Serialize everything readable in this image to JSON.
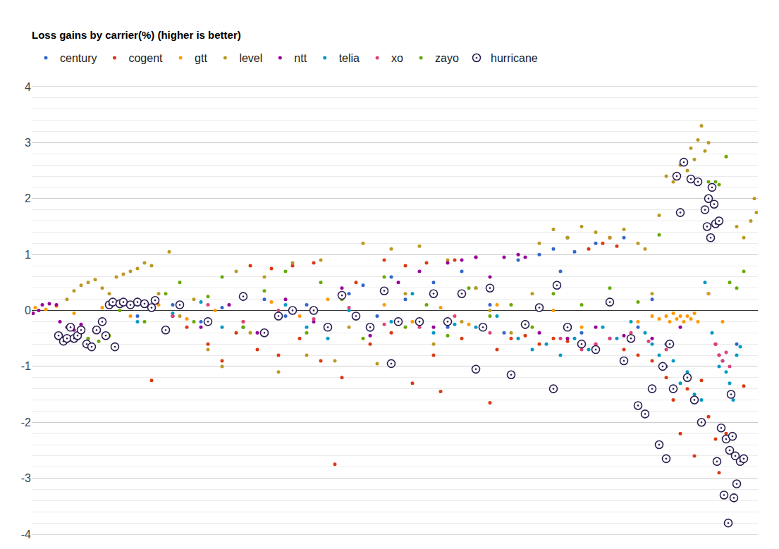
{
  "chart_data": {
    "type": "scatter",
    "title": "Loss gains by carrier(%) (higher is better)",
    "marker": "circle",
    "legend": "top",
    "grid": true,
    "tick_labels": "y",
    "xlim": [
      0,
      1030
    ],
    "ylim": [
      -4,
      4
    ],
    "yticks": [
      -4,
      -3,
      -2,
      -1,
      0,
      1,
      2,
      3,
      4
    ],
    "series": [
      {
        "name": "century",
        "color": "#3366cc",
        "x": [
          150,
          200,
          240,
          270,
          300,
          330,
          360,
          390,
          420,
          450,
          470,
          490,
          510,
          530,
          550,
          570,
          590,
          610,
          630,
          650,
          670,
          690,
          700,
          720,
          740,
          750,
          760,
          770,
          780,
          800,
          820,
          840,
          860,
          880,
          900,
          930,
          960,
          980,
          1000
        ],
        "values": [
          -0.1,
          0.1,
          -0.2,
          0.05,
          -0.3,
          0.2,
          -0.1,
          0.1,
          -0.3,
          0.3,
          0.45,
          -0.1,
          0.6,
          0.2,
          -0.2,
          0.5,
          -0.3,
          0.7,
          0.4,
          0.1,
          -0.4,
          0.9,
          -0.2,
          1.0,
          1.1,
          0.7,
          1.3,
          1.05,
          -0.4,
          1.2,
          -0.5,
          1.3,
          -0.3,
          0.2,
          -0.6,
          -1.2,
          0.3,
          -0.9,
          -0.6
        ]
      },
      {
        "name": "cogent",
        "color": "#dc3912",
        "x": [
          170,
          220,
          250,
          270,
          290,
          310,
          320,
          340,
          350,
          370,
          380,
          400,
          410,
          430,
          440,
          460,
          480,
          500,
          510,
          530,
          540,
          560,
          570,
          580,
          600,
          610,
          630,
          650,
          660,
          680,
          700,
          720,
          740,
          760,
          790,
          800,
          810,
          820,
          830,
          840,
          860,
          880,
          900,
          910,
          920,
          930,
          940,
          950,
          960,
          970,
          975,
          985,
          1010
        ],
        "values": [
          -1.25,
          -0.3,
          -0.6,
          -0.9,
          -0.4,
          0.8,
          -0.7,
          0.75,
          -0.8,
          0.8,
          -0.5,
          0.85,
          -0.9,
          -2.75,
          -1.2,
          0.5,
          -0.6,
          0.9,
          -0.4,
          0.8,
          -1.3,
          0.85,
          -0.8,
          -1.45,
          0.9,
          -0.5,
          0.95,
          -1.65,
          -0.7,
          -0.5,
          -0.45,
          -0.6,
          -0.5,
          -0.55,
          1.1,
          -0.6,
          1.2,
          1.3,
          1.15,
          -0.7,
          -0.8,
          -0.9,
          -1.2,
          -1.6,
          -2.2,
          -1.4,
          -2.6,
          -1.25,
          -1.9,
          -2.3,
          -2.9,
          -2.2,
          -1.35
        ]
      },
      {
        "name": "gtt",
        "color": "#ff9900",
        "x": [
          5,
          20,
          35,
          60,
          100,
          140,
          180,
          220,
          260,
          300,
          340,
          380,
          420,
          460,
          500,
          540,
          580,
          620,
          660,
          700,
          740,
          780,
          820,
          860,
          880,
          890,
          900,
          905,
          910,
          915,
          920,
          925,
          930,
          935,
          940,
          945,
          960,
          980
        ],
        "values": [
          0.05,
          0.02,
          0.08,
          -0.05,
          0.05,
          -0.1,
          0.1,
          -0.15,
          0.0,
          -0.2,
          0.15,
          -0.1,
          0.2,
          -0.15,
          0.1,
          -0.2,
          0.05,
          -0.25,
          0.1,
          -0.2,
          0.0,
          -0.3,
          0.15,
          -0.2,
          -0.1,
          -0.15,
          -0.1,
          -0.2,
          -0.05,
          -0.15,
          -0.1,
          -0.2,
          -0.1,
          -0.15,
          -0.05,
          -0.2,
          0.3,
          -0.2
        ]
      },
      {
        "name": "level",
        "color": "#bb9922",
        "x": [
          50,
          60,
          70,
          80,
          90,
          100,
          110,
          120,
          130,
          140,
          150,
          160,
          170,
          180,
          195,
          210,
          230,
          250,
          270,
          290,
          310,
          330,
          350,
          370,
          390,
          410,
          430,
          450,
          470,
          490,
          510,
          530,
          550,
          570,
          590,
          610,
          630,
          650,
          680,
          710,
          720,
          740,
          760,
          780,
          800,
          820,
          840,
          860,
          870,
          880,
          890,
          900,
          910,
          920,
          930,
          935,
          940,
          945,
          950,
          955,
          960,
          1000,
          1010,
          1020,
          1025,
          1028
        ],
        "values": [
          0.2,
          0.35,
          0.45,
          0.5,
          0.55,
          0.4,
          0.3,
          0.6,
          0.65,
          0.7,
          0.75,
          0.85,
          0.8,
          0.3,
          1.05,
          -0.1,
          0.2,
          -0.7,
          -1.0,
          0.7,
          -0.4,
          0.6,
          -1.1,
          0.85,
          -0.8,
          0.9,
          -0.9,
          -0.3,
          1.2,
          -0.95,
          1.1,
          0.3,
          1.15,
          -0.6,
          0.9,
          -0.2,
          0.4,
          0.0,
          -0.4,
          0.3,
          1.2,
          1.45,
          1.3,
          1.5,
          1.4,
          1.3,
          1.45,
          1.2,
          1.1,
          0.3,
          1.7,
          2.4,
          2.3,
          2.6,
          2.5,
          2.9,
          2.7,
          3.05,
          3.3,
          2.85,
          3.0,
          1.5,
          1.3,
          1.6,
          2.0,
          1.75
        ]
      },
      {
        "name": "ntt",
        "color": "#990099",
        "x": [
          2,
          10,
          15,
          25,
          35,
          40,
          50,
          60,
          70,
          200,
          240,
          280,
          320,
          360,
          400,
          440,
          480,
          520,
          550,
          570,
          590,
          610,
          630,
          650,
          670,
          690,
          700,
          720,
          760,
          800,
          840,
          880,
          920,
          970,
          975
        ],
        "values": [
          -0.05,
          0.0,
          0.1,
          0.12,
          0.1,
          -0.2,
          -0.3,
          -0.35,
          -0.25,
          -0.1,
          -0.3,
          0.1,
          -0.4,
          0.2,
          -0.2,
          0.4,
          -0.45,
          0.5,
          0.7,
          -0.3,
          0.85,
          0.9,
          0.95,
          0.6,
          0.95,
          1.0,
          0.95,
          -0.4,
          -0.5,
          -0.3,
          -0.45,
          -0.5,
          -0.3,
          -0.6,
          -0.8
        ]
      },
      {
        "name": "telia",
        "color": "#0099c6",
        "x": [
          150,
          200,
          240,
          270,
          300,
          330,
          360,
          390,
          420,
          450,
          480,
          510,
          540,
          570,
          600,
          630,
          660,
          690,
          710,
          730,
          750,
          770,
          790,
          810,
          830,
          850,
          870,
          880,
          890,
          900,
          910,
          920,
          930,
          940,
          950,
          955,
          965,
          975,
          985,
          990,
          995,
          1000,
          1005
        ],
        "values": [
          -0.2,
          -0.05,
          0.15,
          -0.3,
          0.25,
          -0.4,
          0.1,
          -0.3,
          -0.5,
          0.0,
          -0.35,
          -0.2,
          0.3,
          -0.4,
          -0.25,
          -0.3,
          -0.1,
          -0.5,
          -0.7,
          -0.6,
          -0.8,
          -0.5,
          -0.7,
          -0.3,
          -0.5,
          -0.2,
          -0.4,
          -0.6,
          -0.8,
          -1.0,
          -0.9,
          -1.3,
          -1.1,
          -1.5,
          -1.6,
          0.5,
          -0.4,
          -1.0,
          -1.1,
          -1.3,
          -1.6,
          -0.8,
          -0.65
        ]
      },
      {
        "name": "xo",
        "color": "#dd4477",
        "x": [
          200,
          250,
          300,
          350,
          400,
          450,
          500,
          550,
          600,
          650,
          700,
          750,
          780,
          800,
          820,
          850,
          875,
          900,
          970,
          975,
          980,
          985,
          990
        ],
        "values": [
          -0.1,
          0.1,
          -0.2,
          0.0,
          -0.15,
          0.05,
          -0.25,
          -0.3,
          -0.1,
          -0.4,
          -0.3,
          -0.5,
          -0.7,
          -0.6,
          -0.5,
          -0.4,
          -0.55,
          -0.7,
          -0.6,
          -0.8,
          -0.9,
          -0.75,
          -1.0
        ]
      },
      {
        "name": "zayo",
        "color": "#66aa00",
        "x": [
          80,
          95,
          110,
          125,
          140,
          160,
          190,
          210,
          230,
          250,
          270,
          300,
          330,
          360,
          390,
          410,
          440,
          470,
          500,
          530,
          560,
          590,
          620,
          650,
          680,
          710,
          740,
          780,
          820,
          860,
          890,
          920,
          960,
          965,
          970,
          975,
          985,
          990,
          1000,
          1010
        ],
        "values": [
          -0.5,
          -0.55,
          -0.45,
          0.0,
          0.05,
          -0.2,
          0.3,
          0.5,
          -0.2,
          0.25,
          0.6,
          -0.3,
          0.35,
          0.7,
          -0.4,
          0.5,
          0.2,
          -0.5,
          0.6,
          -0.3,
          0.1,
          -0.45,
          0.4,
          -0.1,
          0.1,
          -0.3,
          0.3,
          0.1,
          0.4,
          0.15,
          1.35,
          1.8,
          2.3,
          2.2,
          2.3,
          2.25,
          2.75,
          0.5,
          0.4,
          0.7
        ]
      },
      {
        "name": "hurricane",
        "color": "#2c1e52",
        "marker": "circle-dot",
        "x": [
          38,
          45,
          50,
          55,
          60,
          65,
          70,
          78,
          85,
          92,
          100,
          105,
          110,
          115,
          118,
          125,
          130,
          140,
          150,
          160,
          170,
          175,
          190,
          210,
          250,
          300,
          330,
          350,
          370,
          400,
          420,
          440,
          460,
          480,
          500,
          510,
          520,
          550,
          570,
          590,
          610,
          630,
          640,
          650,
          680,
          700,
          720,
          740,
          745,
          760,
          780,
          800,
          820,
          840,
          850,
          860,
          870,
          880,
          890,
          895,
          900,
          905,
          910,
          915,
          920,
          925,
          930,
          935,
          940,
          945,
          950,
          955,
          958,
          960,
          963,
          965,
          968,
          970,
          972,
          975,
          978,
          982,
          985,
          988,
          990,
          992,
          994,
          996,
          998,
          1000,
          1005,
          1010
        ],
        "values": [
          -0.45,
          -0.55,
          -0.5,
          -0.3,
          -0.5,
          -0.45,
          -0.35,
          -0.6,
          -0.65,
          -0.35,
          -0.2,
          -0.45,
          0.1,
          0.15,
          -0.65,
          0.12,
          0.15,
          0.1,
          0.15,
          0.12,
          0.05,
          0.18,
          -0.35,
          0.1,
          -0.2,
          0.25,
          -0.4,
          -0.1,
          0.0,
          0.0,
          -0.3,
          0.27,
          -0.1,
          -0.3,
          0.35,
          -0.95,
          -0.2,
          -0.2,
          0.3,
          -0.2,
          0.3,
          -1.05,
          -0.3,
          0.4,
          -1.15,
          -0.25,
          0.05,
          -1.4,
          0.45,
          -0.3,
          -0.6,
          -0.7,
          0.15,
          -0.9,
          -0.5,
          -1.7,
          -1.85,
          -1.4,
          -2.4,
          -1.0,
          -2.65,
          -0.6,
          -1.4,
          2.4,
          1.75,
          2.65,
          -1.2,
          2.35,
          -1.6,
          2.3,
          -2.0,
          1.8,
          1.5,
          2.0,
          1.3,
          2.2,
          1.9,
          1.55,
          -2.7,
          1.6,
          -2.1,
          -3.3,
          -2.3,
          -3.8,
          -2.5,
          -1.5,
          -2.25,
          -3.35,
          -2.6,
          -3.1,
          -2.7,
          -2.65
        ]
      }
    ]
  }
}
